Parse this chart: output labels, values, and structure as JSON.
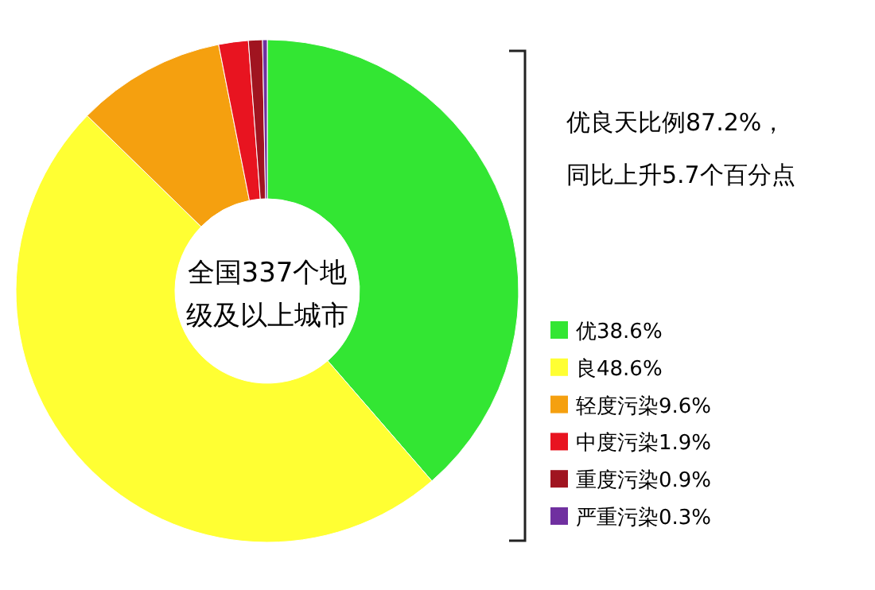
{
  "chart_data": {
    "type": "donut",
    "title": "全国337个地级及以上城市",
    "categories": [
      "优38.6%",
      "良48.6%",
      "轻度污染9.6%",
      "中度污染1.9%",
      "重度污染0.9%",
      "严重污染0.3%"
    ],
    "values": [
      38.6,
      48.6,
      9.6,
      1.9,
      0.9,
      0.3
    ],
    "colors": [
      "#33e633",
      "#ffff33",
      "#f5a00f",
      "#e81420",
      "#a01420",
      "#7030a0"
    ],
    "legend": "right",
    "annotations": [
      "优良天比例87.2%，",
      "同比上升5.7个百分点"
    ]
  }
}
